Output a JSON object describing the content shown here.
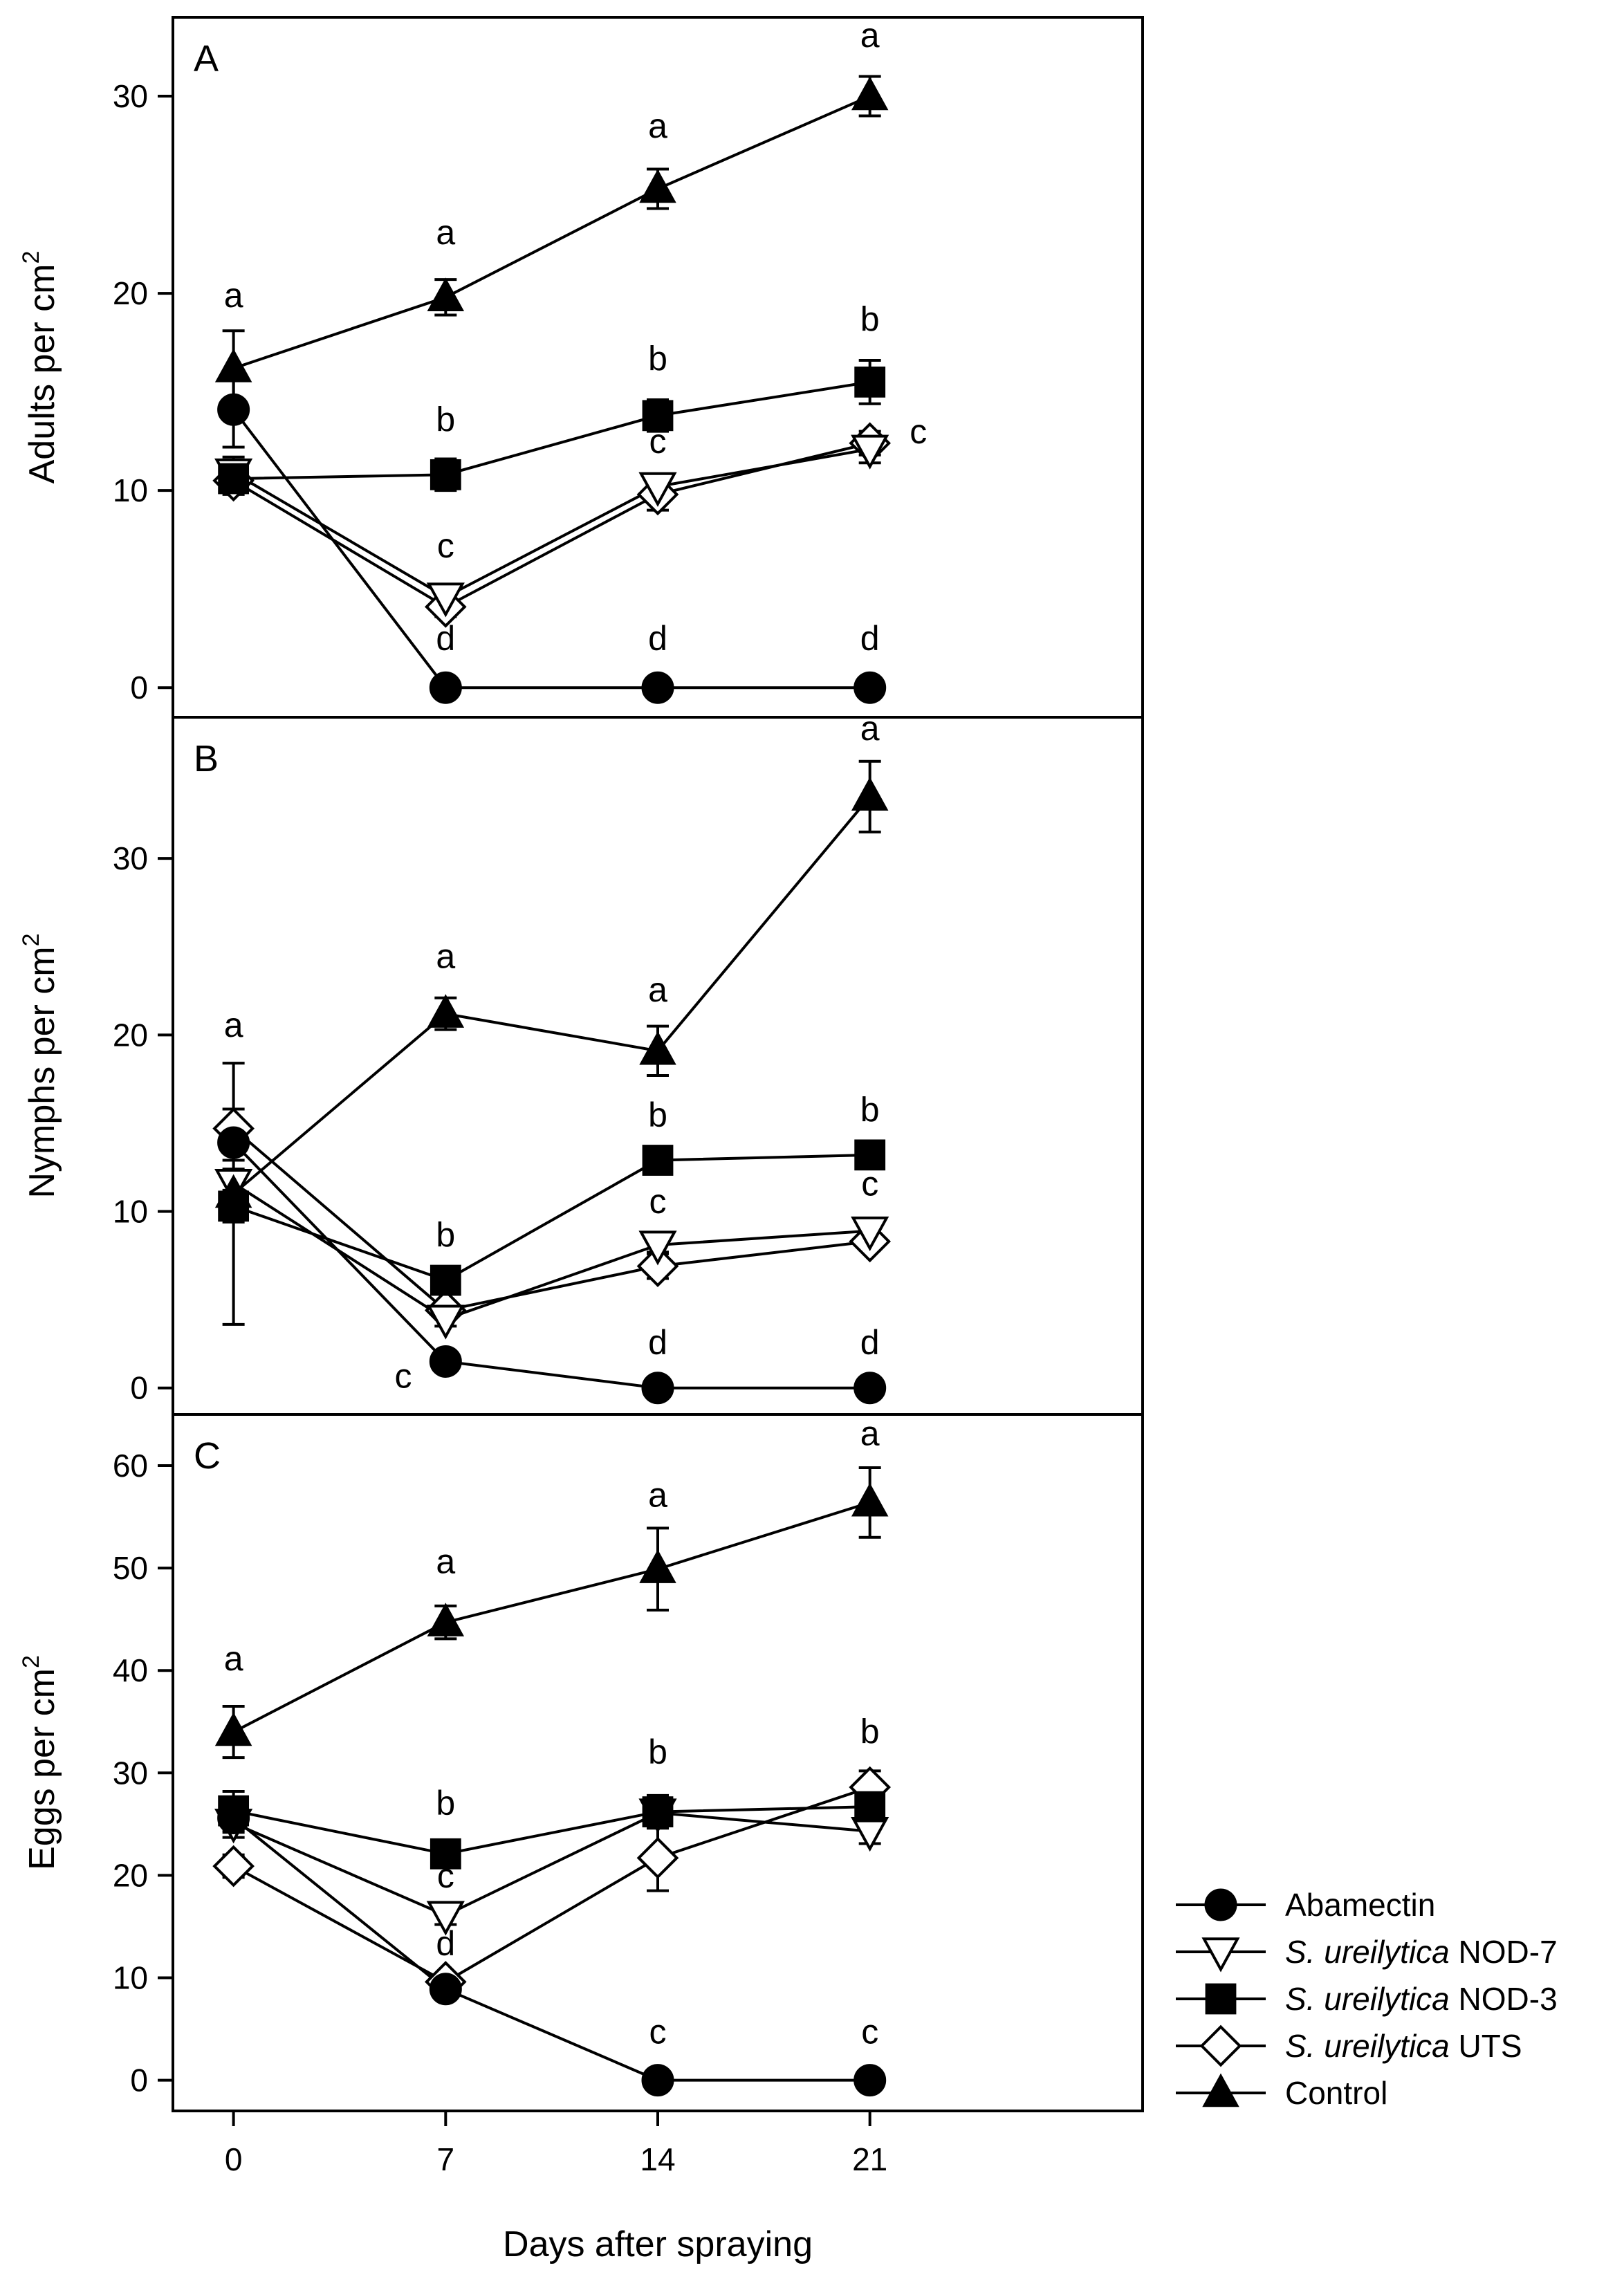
{
  "chart_data": {
    "type": "line",
    "x": [
      0,
      7,
      14,
      21
    ],
    "xlabel": "Days after spraying",
    "xlim": [
      -2,
      30
    ],
    "legend": {
      "placement": "right-bottom",
      "entries": [
        {
          "name": "Abamectin",
          "italic_part": "",
          "plain_part": "Abamectin",
          "marker": "circle-filled"
        },
        {
          "name": "S. ureilytica NOD-7",
          "italic_part": "S. ureilytica",
          "plain_part": " NOD-7",
          "marker": "triangle-down-open"
        },
        {
          "name": "S. ureilytica NOD-3",
          "italic_part": "S. ureilytica",
          "plain_part": " NOD-3",
          "marker": "square-filled"
        },
        {
          "name": "S. ureilytica UTS",
          "italic_part": "S. ureilytica",
          "plain_part": " UTS",
          "marker": "diamond-open"
        },
        {
          "name": "Control",
          "italic_part": "",
          "plain_part": "Control",
          "marker": "triangle-up-filled"
        }
      ]
    },
    "panels": [
      {
        "id": "A",
        "panel_label": "A",
        "ylabel_main": "Adults per cm",
        "ylabel_sup": "2",
        "ylim": [
          -1.5,
          34
        ],
        "yticks": [
          0,
          10,
          20,
          30
        ],
        "series": [
          {
            "name": "Abamectin",
            "marker": "circle-filled",
            "values": [
              14.1,
              0,
              0,
              0
            ],
            "err": [
              1.9,
              0,
              0,
              0
            ]
          },
          {
            "name": "S. ureilytica NOD-7",
            "marker": "triangle-down-open",
            "values": [
              10.9,
              4.6,
              10.2,
              12.1
            ],
            "err": [
              0.8,
              0.6,
              0.6,
              0.7
            ]
          },
          {
            "name": "S. ureilytica NOD-3",
            "marker": "square-filled",
            "values": [
              10.6,
              10.8,
              13.8,
              15.5
            ],
            "err": [
              0.7,
              0.8,
              0.8,
              1.1
            ]
          },
          {
            "name": "S. ureilytica UTS",
            "marker": "diamond-open",
            "values": [
              10.5,
              4.1,
              9.8,
              12.4
            ],
            "err": [
              0.7,
              0.5,
              0.8,
              0.6
            ]
          },
          {
            "name": "Control",
            "marker": "triangle-up-filled",
            "values": [
              16.2,
              19.8,
              25.3,
              30.0
            ],
            "err": [
              1.9,
              0.9,
              1.0,
              1.0
            ]
          }
        ],
        "annotations": [
          {
            "text": "a",
            "x": 0,
            "y": 19.3
          },
          {
            "text": "a",
            "x": 7,
            "y": 22.5
          },
          {
            "text": "a",
            "x": 14,
            "y": 27.9
          },
          {
            "text": "a",
            "x": 21,
            "y": 32.5
          },
          {
            "text": "b",
            "x": 7,
            "y": 13.0
          },
          {
            "text": "b",
            "x": 14,
            "y": 16.1
          },
          {
            "text": "b",
            "x": 21,
            "y": 18.1
          },
          {
            "text": "c",
            "x": 7,
            "y": 6.6
          },
          {
            "text": "c",
            "x": 14,
            "y": 11.9
          },
          {
            "text": "c",
            "x": 22.6,
            "y": 12.4
          },
          {
            "text": "d",
            "x": 7,
            "y": 1.9
          },
          {
            "text": "d",
            "x": 14,
            "y": 1.9
          },
          {
            "text": "d",
            "x": 21,
            "y": 1.9
          }
        ]
      },
      {
        "id": "B",
        "panel_label": "B",
        "ylabel_main": "Nymphs per cm",
        "ylabel_sup": "2",
        "ylim": [
          -1.5,
          38
        ],
        "yticks": [
          0,
          10,
          20,
          30
        ],
        "series": [
          {
            "name": "Abamectin",
            "marker": "circle-filled",
            "values": [
              13.9,
              1.5,
              0,
              0
            ],
            "err": [
              1.0,
              0.3,
              0,
              0
            ]
          },
          {
            "name": "S. ureilytica NOD-7",
            "marker": "triangle-down-open",
            "values": [
              11.6,
              3.9,
              8.1,
              8.9
            ],
            "err": [
              0.8,
              0.4,
              0.4,
              0.4
            ]
          },
          {
            "name": "S. ureilytica NOD-3",
            "marker": "square-filled",
            "values": [
              10.3,
              6.1,
              12.9,
              13.2
            ],
            "err": [
              0.9,
              0.4,
              0.6,
              0.5
            ]
          },
          {
            "name": "S. ureilytica UTS",
            "marker": "diamond-open",
            "values": [
              14.7,
              4.4,
              6.9,
              8.3
            ],
            "err": [
              1.1,
              0.5,
              0.7,
              0.5
            ]
          },
          {
            "name": "Control",
            "marker": "triangle-up-filled",
            "values": [
              11.0,
              21.2,
              19.1,
              33.5
            ],
            "err": [
              7.4,
              0.9,
              1.4,
              2.0
            ]
          }
        ],
        "annotations": [
          {
            "text": "a",
            "x": 0,
            "y": 19.9
          },
          {
            "text": "a",
            "x": 7,
            "y": 23.8
          },
          {
            "text": "a",
            "x": 14,
            "y": 21.9
          },
          {
            "text": "a",
            "x": 21,
            "y": 36.7
          },
          {
            "text": "b",
            "x": 7,
            "y": 8.0
          },
          {
            "text": "b",
            "x": 14,
            "y": 14.8
          },
          {
            "text": "b",
            "x": 21,
            "y": 15.1
          },
          {
            "text": "c",
            "x": 5.6,
            "y": 0.0
          },
          {
            "text": "c",
            "x": 14,
            "y": 9.9
          },
          {
            "text": "c",
            "x": 21,
            "y": 10.9
          },
          {
            "text": "d",
            "x": 14,
            "y": 1.9
          },
          {
            "text": "d",
            "x": 21,
            "y": 1.9
          }
        ]
      },
      {
        "id": "C",
        "panel_label": "C",
        "ylabel_main": "Eggs per cm",
        "ylabel_sup": "2",
        "ylim": [
          -3,
          65
        ],
        "yticks": [
          0,
          10,
          20,
          30,
          40,
          50,
          60
        ],
        "series": [
          {
            "name": "Abamectin",
            "marker": "circle-filled",
            "values": [
              25.6,
              8.9,
              0,
              0
            ],
            "err": [
              1.4,
              0.6,
              0,
              0
            ]
          },
          {
            "name": "S. ureilytica NOD-7",
            "marker": "triangle-down-open",
            "values": [
              25.1,
              16.1,
              26.1,
              24.3
            ],
            "err": [
              1.4,
              0.9,
              1.2,
              1.2
            ]
          },
          {
            "name": "S. ureilytica NOD-3",
            "marker": "square-filled",
            "values": [
              26.3,
              22.1,
              26.2,
              26.7
            ],
            "err": [
              1.9,
              0.8,
              1.6,
              1.3
            ]
          },
          {
            "name": "S. ureilytica UTS",
            "marker": "diamond-open",
            "values": [
              20.9,
              9.6,
              21.7,
              28.6
            ],
            "err": [
              1.1,
              0.8,
              3.2,
              1.6
            ]
          },
          {
            "name": "Control",
            "marker": "triangle-up-filled",
            "values": [
              34.0,
              44.7,
              49.9,
              56.4
            ],
            "err": [
              2.5,
              1.6,
              4.0,
              3.4
            ]
          }
        ],
        "annotations": [
          {
            "text": "a",
            "x": 0,
            "y": 40.0
          },
          {
            "text": "a",
            "x": 7,
            "y": 49.5
          },
          {
            "text": "a",
            "x": 14,
            "y": 56.0
          },
          {
            "text": "a",
            "x": 21,
            "y": 62.0
          },
          {
            "text": "b",
            "x": 7,
            "y": 25.9
          },
          {
            "text": "b",
            "x": 14,
            "y": 30.9
          },
          {
            "text": "b",
            "x": 21,
            "y": 32.9
          },
          {
            "text": "c",
            "x": 7,
            "y": 18.8
          },
          {
            "text": "c",
            "x": 14,
            "y": 3.6
          },
          {
            "text": "c",
            "x": 21,
            "y": 3.6
          },
          {
            "text": "d",
            "x": 7,
            "y": 12.2
          }
        ]
      }
    ]
  }
}
